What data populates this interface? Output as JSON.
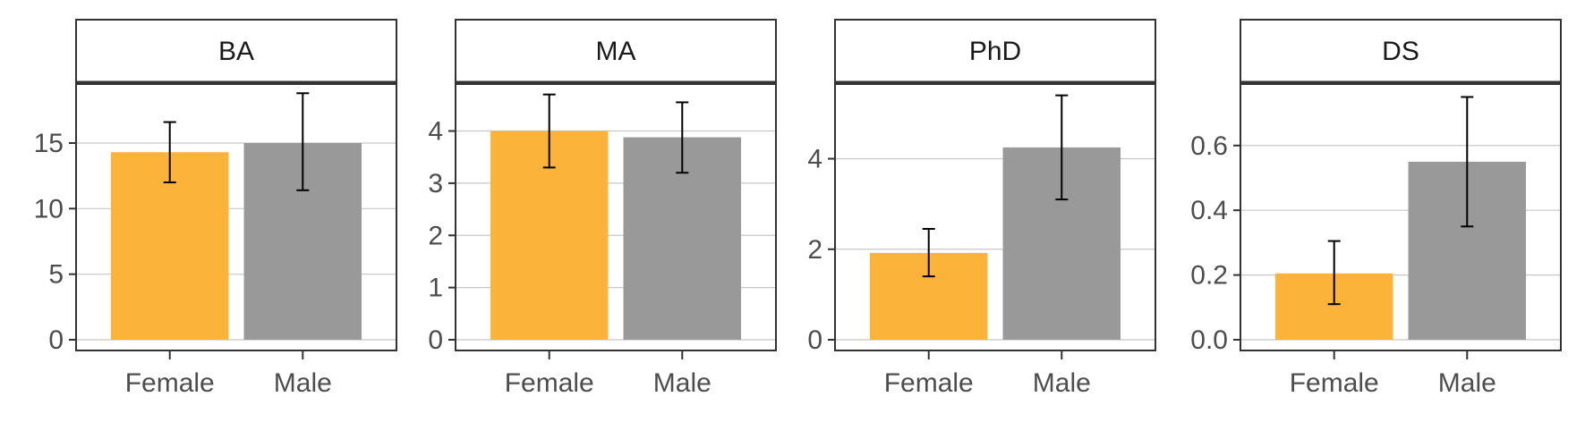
{
  "chart_data": [
    {
      "type": "bar",
      "facet": "BA",
      "categories": [
        "Female",
        "Male"
      ],
      "values": [
        14.3,
        15.0
      ],
      "error_low": [
        12.0,
        11.4
      ],
      "error_high": [
        16.6,
        18.8
      ],
      "ylim": [
        0,
        19.5
      ],
      "yticks": [
        0,
        5,
        10,
        15
      ],
      "ytick_labels": [
        "0",
        "5",
        "10",
        "15"
      ],
      "colors": [
        "#fbb33a",
        "#999999"
      ],
      "grid": true
    },
    {
      "type": "bar",
      "facet": "MA",
      "categories": [
        "Female",
        "Male"
      ],
      "values": [
        4.0,
        3.88
      ],
      "error_low": [
        3.3,
        3.2
      ],
      "error_high": [
        4.7,
        4.55
      ],
      "ylim": [
        0,
        4.9
      ],
      "yticks": [
        0,
        1,
        2,
        3,
        4
      ],
      "ytick_labels": [
        "0",
        "1",
        "2",
        "3",
        "4"
      ],
      "colors": [
        "#fbb33a",
        "#999999"
      ],
      "grid": true
    },
    {
      "type": "bar",
      "facet": "PhD",
      "categories": [
        "Female",
        "Male"
      ],
      "values": [
        1.92,
        4.25
      ],
      "error_low": [
        1.4,
        3.1
      ],
      "error_high": [
        2.45,
        5.4
      ],
      "ylim": [
        0,
        5.65
      ],
      "yticks": [
        0,
        2,
        4
      ],
      "ytick_labels": [
        "0",
        "2",
        "4"
      ],
      "colors": [
        "#fbb33a",
        "#999999"
      ],
      "grid": true
    },
    {
      "type": "bar",
      "facet": "DS",
      "categories": [
        "Female",
        "Male"
      ],
      "values": [
        0.205,
        0.55
      ],
      "error_low": [
        0.11,
        0.35
      ],
      "error_high": [
        0.305,
        0.75
      ],
      "ylim": [
        0,
        0.79
      ],
      "yticks": [
        0.0,
        0.2,
        0.4,
        0.6
      ],
      "ytick_labels": [
        "0.0",
        "0.2",
        "0.4",
        "0.6"
      ],
      "colors": [
        "#fbb33a",
        "#999999"
      ],
      "grid": true
    }
  ]
}
